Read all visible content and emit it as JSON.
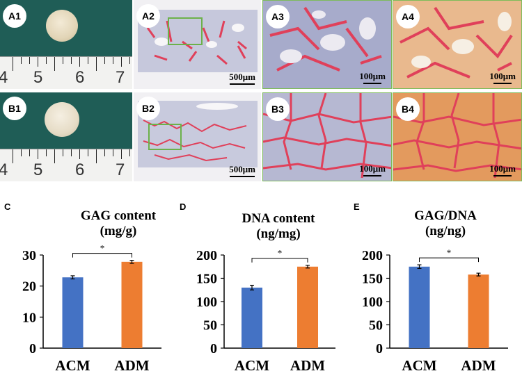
{
  "panels": {
    "A1": "A1",
    "A2": "A2",
    "A3": "A3",
    "A4": "A4",
    "B1": "B1",
    "B2": "B2",
    "B3": "B3",
    "B4": "B4",
    "C": "C",
    "D": "D",
    "E": "E"
  },
  "ruler_numbers": [
    "4",
    "5",
    "6",
    "7"
  ],
  "scale_bars": {
    "A2": "500μm",
    "A3": "100μm",
    "A4": "100μm",
    "B2": "500μm",
    "B3": "100μm",
    "B4": "100μm"
  },
  "colors": {
    "cloth": "#1f5d56",
    "stain_red": "#e0405a",
    "tissue_blue": "#b8bcd6",
    "acm": "#4472c4",
    "adm": "#ed7d31",
    "frame_green": "#7dbb5a"
  },
  "chart_data": [
    {
      "type": "bar",
      "title_line1": "GAG content",
      "title_line2": "(mg/g)",
      "categories": [
        "ACM",
        "ADM"
      ],
      "values": [
        22.8,
        27.8
      ],
      "errors": [
        0.5,
        0.5
      ],
      "ylim": [
        0,
        30
      ],
      "yticks": [
        "0",
        "10",
        "20",
        "30"
      ],
      "significance": "*",
      "colors": [
        "#4472c4",
        "#ed7d31"
      ]
    },
    {
      "type": "bar",
      "title_line1": "DNA content",
      "title_line2": "(ng/mg)",
      "categories": [
        "ACM",
        "ADM"
      ],
      "values": [
        130,
        175
      ],
      "errors": [
        5,
        3
      ],
      "ylim": [
        0,
        200
      ],
      "yticks": [
        "0",
        "50",
        "100",
        "150",
        "200"
      ],
      "significance": "*",
      "colors": [
        "#4472c4",
        "#ed7d31"
      ]
    },
    {
      "type": "bar",
      "title_line1": "GAG/DNA",
      "title_line2": "(ng/ng)",
      "categories": [
        "ACM",
        "ADM"
      ],
      "values": [
        175,
        158
      ],
      "errors": [
        4,
        3
      ],
      "ylim": [
        0,
        200
      ],
      "yticks": [
        "0",
        "50",
        "100",
        "150",
        "200"
      ],
      "significance": "*",
      "colors": [
        "#4472c4",
        "#ed7d31"
      ]
    }
  ]
}
